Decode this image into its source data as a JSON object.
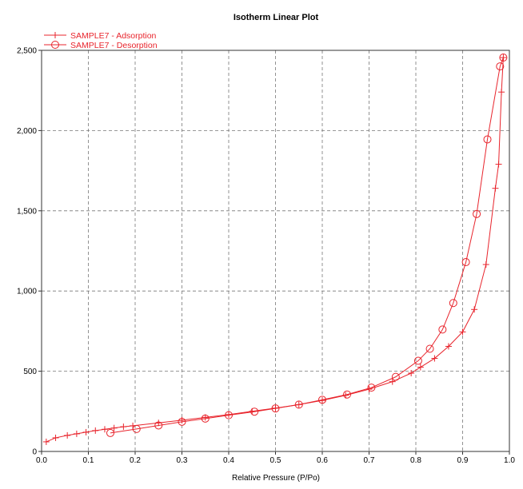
{
  "chart_data": {
    "type": "line",
    "title": "Isotherm Linear Plot",
    "xlabel": "Relative Pressure (P/Po)",
    "ylabel": "",
    "xlim": [
      0,
      1.0
    ],
    "ylim": [
      0,
      2500
    ],
    "x_ticks": [
      0,
      0.1,
      0.2,
      0.3,
      0.4,
      0.5,
      0.6,
      0.7,
      0.8,
      0.9,
      1.0
    ],
    "x_tick_labels": [
      "0.0",
      "0.1",
      "0.2",
      "0.3",
      "0.4",
      "0.5",
      "0.6",
      "0.7",
      "0.8",
      "0.9",
      "1.0"
    ],
    "y_ticks": [
      0,
      500,
      1000,
      1500,
      2000,
      2500
    ],
    "y_tick_labels": [
      "0",
      "500",
      "1,000",
      "1,500",
      "2,000",
      "2,500"
    ],
    "grid": true,
    "legend_position": "top-left",
    "series_color": "#e8242c",
    "series": [
      {
        "name": "SAMPLE7 - Adsorption",
        "marker": "plus",
        "points": [
          [
            0.01,
            60
          ],
          [
            0.03,
            85
          ],
          [
            0.055,
            100
          ],
          [
            0.075,
            110
          ],
          [
            0.095,
            120
          ],
          [
            0.115,
            130
          ],
          [
            0.135,
            138
          ],
          [
            0.155,
            146
          ],
          [
            0.175,
            154
          ],
          [
            0.195,
            160
          ],
          [
            0.25,
            178
          ],
          [
            0.3,
            195
          ],
          [
            0.35,
            212
          ],
          [
            0.4,
            230
          ],
          [
            0.45,
            250
          ],
          [
            0.5,
            270
          ],
          [
            0.55,
            292
          ],
          [
            0.6,
            318
          ],
          [
            0.65,
            350
          ],
          [
            0.7,
            388
          ],
          [
            0.75,
            435
          ],
          [
            0.79,
            488
          ],
          [
            0.81,
            525
          ],
          [
            0.84,
            580
          ],
          [
            0.87,
            655
          ],
          [
            0.9,
            745
          ],
          [
            0.925,
            885
          ],
          [
            0.95,
            1165
          ],
          [
            0.97,
            1640
          ],
          [
            0.977,
            1790
          ],
          [
            0.983,
            2240
          ],
          [
            0.987,
            2455
          ]
        ]
      },
      {
        "name": "SAMPLE7 - Desorption",
        "marker": "circle",
        "points": [
          [
            0.147,
            115
          ],
          [
            0.203,
            140
          ],
          [
            0.25,
            162
          ],
          [
            0.3,
            185
          ],
          [
            0.35,
            205
          ],
          [
            0.4,
            226
          ],
          [
            0.455,
            248
          ],
          [
            0.5,
            268
          ],
          [
            0.55,
            292
          ],
          [
            0.6,
            322
          ],
          [
            0.653,
            355
          ],
          [
            0.705,
            398
          ],
          [
            0.757,
            465
          ],
          [
            0.805,
            565
          ],
          [
            0.83,
            640
          ],
          [
            0.857,
            760
          ],
          [
            0.88,
            925
          ],
          [
            0.907,
            1180
          ],
          [
            0.93,
            1480
          ],
          [
            0.953,
            1945
          ],
          [
            0.98,
            2400
          ],
          [
            0.987,
            2455
          ]
        ]
      }
    ]
  }
}
